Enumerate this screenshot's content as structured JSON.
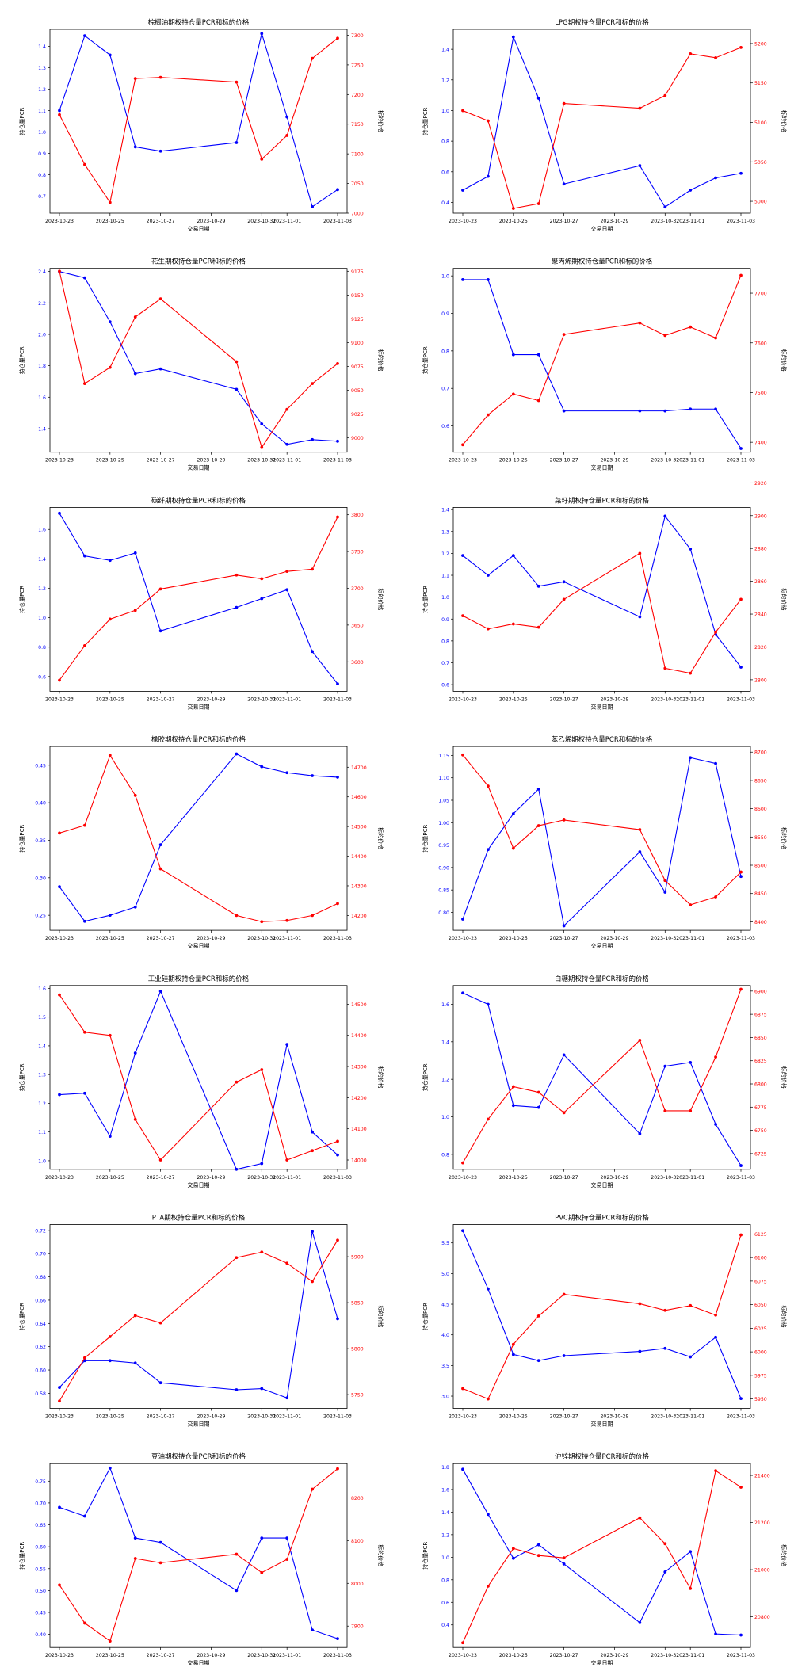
{
  "dates": [
    "2023-10-23",
    "2023-10-24",
    "2023-10-25",
    "2023-10-26",
    "2023-10-27",
    "2023-10-30",
    "2023-10-31",
    "2023-11-01",
    "2023-11-02",
    "2023-11-03"
  ],
  "colors": {
    "pcr": "#0000ff",
    "price": "#ff0000",
    "axis": "#000000"
  },
  "chart_data": [
    {
      "type": "line",
      "title": "棕榈油期权持仓量PCR和标的价格",
      "xlabel": "交易日期",
      "ylabel_left": "持仓量PCR",
      "ylabel_right": "标的价格",
      "x_ticks": [
        "2023-10-23",
        "2023-10-25",
        "2023-10-27",
        "2023-10-29",
        "2023-10-31",
        "2023-11-01",
        "2023-11-03"
      ],
      "left_ticks": [
        "0.7",
        "0.8",
        "0.9",
        "1.0",
        "1.1",
        "1.2",
        "1.3",
        "1.4"
      ],
      "left_ylim": [
        0.62,
        1.48
      ],
      "right_ticks": [
        "7000",
        "7050",
        "7100",
        "7150",
        "7200",
        "7250",
        "7300"
      ],
      "right_ylim": [
        7000,
        7310
      ],
      "series": [
        {
          "name": "持仓量PCR",
          "axis": "left",
          "values": [
            1.1,
            1.45,
            1.36,
            0.93,
            0.91,
            0.95,
            1.46,
            1.07,
            0.65,
            0.73
          ]
        },
        {
          "name": "标的价格",
          "axis": "right",
          "values": [
            7166,
            7082,
            7018,
            7227,
            7229,
            7221,
            7091,
            7131,
            7261,
            7295
          ]
        }
      ]
    },
    {
      "type": "line",
      "title": "LPG期权持仓量PCR和标的价格",
      "xlabel": "交易日期",
      "ylabel_left": "持仓量PCR",
      "ylabel_right": "标的价格",
      "x_ticks": [
        "2023-10-23",
        "2023-10-25",
        "2023-10-27",
        "2023-10-29",
        "2023-10-31",
        "2023-11-01",
        "2023-11-03"
      ],
      "left_ticks": [
        "0.4",
        "0.6",
        "0.8",
        "1.0",
        "1.2",
        "1.4"
      ],
      "left_ylim": [
        0.33,
        1.53
      ],
      "right_ticks": [
        "5000",
        "5050",
        "5100",
        "5150",
        "5200"
      ],
      "right_ylim": [
        4985,
        5218
      ],
      "series": [
        {
          "name": "持仓量PCR",
          "axis": "left",
          "values": [
            0.48,
            0.57,
            1.48,
            1.08,
            0.52,
            0.64,
            0.37,
            0.48,
            0.56,
            0.59
          ]
        },
        {
          "name": "标的价格",
          "axis": "right",
          "values": [
            5115,
            5102,
            4991,
            4997,
            5124,
            5118,
            5134,
            5187,
            5182,
            5195
          ]
        }
      ]
    },
    {
      "type": "line",
      "title": "花生期权持仓量PCR和标的价格",
      "xlabel": "交易日期",
      "ylabel_left": "持仓量PCR",
      "ylabel_right": "标的价格",
      "x_ticks": [
        "2023-10-23",
        "2023-10-25",
        "2023-10-27",
        "2023-10-29",
        "2023-10-31",
        "2023-11-01",
        "2023-11-03"
      ],
      "left_ticks": [
        "1.4",
        "1.6",
        "1.8",
        "2.0",
        "2.2",
        "2.4"
      ],
      "left_ylim": [
        1.25,
        2.42
      ],
      "right_ticks": [
        "9000",
        "9025",
        "9050",
        "9075",
        "9100",
        "9125",
        "9150",
        "9175"
      ],
      "right_ylim": [
        8985,
        9178
      ],
      "series": [
        {
          "name": "持仓量PCR",
          "axis": "left",
          "values": [
            2.4,
            2.36,
            2.08,
            1.75,
            1.78,
            1.65,
            1.43,
            1.3,
            1.33,
            1.32
          ]
        },
        {
          "name": "标的价格",
          "axis": "right",
          "values": [
            9175,
            9057,
            9074,
            9127,
            9146,
            9080,
            8990,
            9030,
            9057,
            9078
          ]
        }
      ]
    },
    {
      "type": "line",
      "title": "聚丙烯期权持仓量PCR和标的价格",
      "xlabel": "交易日期",
      "ylabel_left": "持仓量PCR",
      "ylabel_right": "标的价格",
      "x_ticks": [
        "2023-10-23",
        "2023-10-25",
        "2023-10-27",
        "2023-10-29",
        "2023-10-31",
        "2023-11-01",
        "2023-11-03"
      ],
      "left_ticks": [
        "0.6",
        "0.7",
        "0.8",
        "0.9",
        "1.0"
      ],
      "left_ylim": [
        0.53,
        1.02
      ],
      "right_ticks": [
        "7400",
        "7500",
        "7600",
        "7700"
      ],
      "right_ylim": [
        7380,
        7750
      ],
      "series": [
        {
          "name": "持仓量PCR",
          "axis": "left",
          "values": [
            0.99,
            0.99,
            0.79,
            0.79,
            0.64,
            0.64,
            0.64,
            0.645,
            0.645,
            0.54
          ]
        },
        {
          "name": "标的价格",
          "axis": "right",
          "values": [
            7395,
            7455,
            7497,
            7484,
            7617,
            7640,
            7615,
            7632,
            7610,
            7736
          ]
        }
      ]
    },
    {
      "type": "line",
      "title": "碳纤期权持仓量PCR和标的价格",
      "xlabel": "交易日期",
      "ylabel_left": "持仓量PCR",
      "ylabel_right": "标的价格",
      "x_ticks": [
        "2023-10-23",
        "2023-10-25",
        "2023-10-27",
        "2023-10-29",
        "2023-10-31",
        "2023-11-01",
        "2023-11-03"
      ],
      "left_ticks": [
        "0.6",
        "0.8",
        "1.0",
        "1.2",
        "1.4",
        "1.6"
      ],
      "left_ylim": [
        0.5,
        1.75
      ],
      "right_ticks": [
        "3600",
        "3650",
        "3700",
        "3750",
        "3800"
      ],
      "right_ylim": [
        3560,
        3810
      ],
      "series": [
        {
          "name": "持仓量PCR",
          "axis": "left",
          "values": [
            1.71,
            1.42,
            1.39,
            1.44,
            0.91,
            1.07,
            1.13,
            1.19,
            0.77,
            0.55
          ]
        },
        {
          "name": "标的价格",
          "axis": "right",
          "values": [
            3575,
            3622,
            3658,
            3670,
            3699,
            3718,
            3713,
            3723,
            3726,
            3797
          ]
        }
      ]
    },
    {
      "type": "line",
      "title": "菜籽期权持仓量PCR和标的价格",
      "xlabel": "交易日期",
      "ylabel_left": "持仓量PCR",
      "ylabel_right": "标的价格",
      "x_ticks": [
        "2023-10-23",
        "2023-10-25",
        "2023-10-27",
        "2023-10-29",
        "2023-10-31",
        "2023-11-01",
        "2023-11-03"
      ],
      "left_ticks": [
        "0.6",
        "0.7",
        "0.8",
        "0.9",
        "1.0",
        "1.1",
        "1.2",
        "1.3",
        "1.4"
      ],
      "left_ylim": [
        0.57,
        1.41
      ],
      "right_ticks": [
        "2800",
        "2820",
        "2840",
        "2860",
        "2880",
        "2900",
        "2920"
      ],
      "right_ylim": [
        2793,
        2905
      ],
      "series": [
        {
          "name": "持仓量PCR",
          "axis": "left",
          "values": [
            1.19,
            1.1,
            1.19,
            1.05,
            1.07,
            0.91,
            1.37,
            1.22,
            0.83,
            0.68
          ]
        },
        {
          "name": "标的价格",
          "axis": "right",
          "values": [
            2839,
            2831,
            2834,
            2832,
            2849,
            2877,
            2807,
            2804,
            2829,
            2849
          ]
        }
      ]
    },
    {
      "type": "line",
      "title": "橡胶期权持仓量PCR和标的价格",
      "xlabel": "交易日期",
      "ylabel_left": "持仓量PCR",
      "ylabel_right": "标的价格",
      "x_ticks": [
        "2023-10-23",
        "2023-10-25",
        "2023-10-27",
        "2023-10-29",
        "2023-10-31",
        "2023-11-01",
        "2023-11-03"
      ],
      "left_ticks": [
        "0.25",
        "0.30",
        "0.35",
        "0.40",
        "0.45"
      ],
      "left_ylim": [
        0.23,
        0.475
      ],
      "right_ticks": [
        "14200",
        "14300",
        "14400",
        "14500",
        "14600",
        "14700"
      ],
      "right_ylim": [
        14150,
        14770
      ],
      "series": [
        {
          "name": "持仓量PCR",
          "axis": "left",
          "values": [
            0.288,
            0.242,
            0.25,
            0.261,
            0.344,
            0.465,
            0.448,
            0.44,
            0.436,
            0.434
          ]
        },
        {
          "name": "标的价格",
          "axis": "right",
          "values": [
            14478,
            14504,
            14740,
            14605,
            14357,
            14200,
            14179,
            14183,
            14200,
            14240
          ]
        }
      ]
    },
    {
      "type": "line",
      "title": "苯乙烯期权持仓量PCR和标的价格",
      "xlabel": "交易日期",
      "ylabel_left": "持仓量PCR",
      "ylabel_right": "标的价格",
      "x_ticks": [
        "2023-10-23",
        "2023-10-25",
        "2023-10-27",
        "2023-10-29",
        "2023-10-31",
        "2023-11-01",
        "2023-11-03"
      ],
      "left_ticks": [
        "0.80",
        "0.85",
        "0.90",
        "0.95",
        "1.00",
        "1.05",
        "1.10",
        "1.15"
      ],
      "left_ylim": [
        0.76,
        1.17
      ],
      "right_ticks": [
        "8400",
        "8450",
        "8500",
        "8550",
        "8600",
        "8650",
        "8700"
      ],
      "right_ylim": [
        8385,
        8710
      ],
      "series": [
        {
          "name": "持仓量PCR",
          "axis": "left",
          "values": [
            0.785,
            0.94,
            1.02,
            1.075,
            0.77,
            0.935,
            0.845,
            1.145,
            1.132,
            0.88
          ]
        },
        {
          "name": "标的价格",
          "axis": "right",
          "values": [
            8695,
            8640,
            8530,
            8570,
            8580,
            8563,
            8473,
            8430,
            8444,
            8488
          ]
        }
      ]
    },
    {
      "type": "line",
      "title": "工业硅期权持仓量PCR和标的价格",
      "xlabel": "交易日期",
      "ylabel_left": "持仓量PCR",
      "ylabel_right": "标的价格",
      "x_ticks": [
        "2023-10-23",
        "2023-10-25",
        "2023-10-27",
        "2023-10-29",
        "2023-10-31",
        "2023-11-01",
        "2023-11-03"
      ],
      "left_ticks": [
        "1.0",
        "1.1",
        "1.2",
        "1.3",
        "1.4",
        "1.5",
        "1.6"
      ],
      "left_ylim": [
        0.97,
        1.61
      ],
      "right_ticks": [
        "14000",
        "14100",
        "14200",
        "14300",
        "14400",
        "14500"
      ],
      "right_ylim": [
        13970,
        14560
      ],
      "series": [
        {
          "name": "持仓量PCR",
          "axis": "left",
          "values": [
            1.23,
            1.235,
            1.085,
            1.375,
            1.59,
            0.97,
            0.99,
            1.405,
            1.1,
            1.02
          ]
        },
        {
          "name": "标的价格",
          "axis": "right",
          "values": [
            14530,
            14410,
            14400,
            14130,
            14000,
            14250,
            14290,
            14000,
            14030,
            14060
          ]
        }
      ]
    },
    {
      "type": "line",
      "title": "白糖期权持仓量PCR和标的价格",
      "xlabel": "交易日期",
      "ylabel_left": "持仓量PCR",
      "ylabel_right": "标的价格",
      "x_ticks": [
        "2023-10-23",
        "2023-10-25",
        "2023-10-27",
        "2023-10-29",
        "2023-10-31",
        "2023-11-01",
        "2023-11-03"
      ],
      "left_ticks": [
        "0.8",
        "1.0",
        "1.2",
        "1.4",
        "1.6"
      ],
      "left_ylim": [
        0.72,
        1.7
      ],
      "right_ticks": [
        "6725",
        "6750",
        "6775",
        "6800",
        "6825",
        "6850",
        "6875",
        "6900"
      ],
      "right_ylim": [
        6708,
        6906
      ],
      "series": [
        {
          "name": "持仓量PCR",
          "axis": "left",
          "values": [
            1.66,
            1.6,
            1.06,
            1.05,
            1.33,
            0.91,
            1.27,
            1.29,
            0.96,
            0.74
          ]
        },
        {
          "name": "标的价格",
          "axis": "right",
          "values": [
            6715,
            6762,
            6797,
            6791,
            6769,
            6847,
            6771,
            6771,
            6829,
            6902
          ]
        }
      ]
    },
    {
      "type": "line",
      "title": "PTA期权持仓量PCR和标的价格",
      "xlabel": "交易日期",
      "ylabel_left": "持仓量PCR",
      "ylabel_right": "标的价格",
      "x_ticks": [
        "2023-10-23",
        "2023-10-25",
        "2023-10-27",
        "2023-10-29",
        "2023-10-31",
        "2023-11-01",
        "2023-11-03"
      ],
      "left_ticks": [
        "0.58",
        "0.60",
        "0.62",
        "0.64",
        "0.66",
        "0.68",
        "0.70",
        "0.72"
      ],
      "left_ylim": [
        0.567,
        0.725
      ],
      "right_ticks": [
        "5750",
        "5800",
        "5850",
        "5900"
      ],
      "right_ylim": [
        5735,
        5935
      ],
      "series": [
        {
          "name": "持仓量PCR",
          "axis": "left",
          "values": [
            0.585,
            0.608,
            0.608,
            0.606,
            0.589,
            0.583,
            0.584,
            0.576,
            0.719,
            0.644
          ]
        },
        {
          "name": "标的价格",
          "axis": "right",
          "values": [
            5743,
            5790,
            5813,
            5836,
            5828,
            5899,
            5905,
            5893,
            5873,
            5918
          ]
        }
      ]
    },
    {
      "type": "line",
      "title": "PVC期权持仓量PCR和标的价格",
      "xlabel": "交易日期",
      "ylabel_left": "持仓量PCR",
      "ylabel_right": "标的价格",
      "x_ticks": [
        "2023-10-23",
        "2023-10-25",
        "2023-10-27",
        "2023-10-29",
        "2023-10-31",
        "2023-11-01",
        "2023-11-03"
      ],
      "left_ticks": [
        "3.0",
        "3.5",
        "4.0",
        "4.5",
        "5.0",
        "5.5"
      ],
      "left_ylim": [
        2.8,
        5.8
      ],
      "right_ticks": [
        "5950",
        "5975",
        "6000",
        "6025",
        "6050",
        "6075",
        "6100",
        "6125"
      ],
      "right_ylim": [
        5940,
        6135
      ],
      "series": [
        {
          "name": "持仓量PCR",
          "axis": "left",
          "values": [
            5.7,
            4.75,
            3.68,
            3.58,
            3.66,
            3.73,
            3.78,
            3.64,
            3.96,
            2.96
          ]
        },
        {
          "name": "标的价格",
          "axis": "right",
          "values": [
            5961,
            5950,
            6008,
            6038,
            6061,
            6051,
            6044,
            6049,
            6039,
            6124
          ]
        }
      ]
    },
    {
      "type": "line",
      "title": "豆油期权持仓量PCR和标的价格",
      "xlabel": "交易日期",
      "ylabel_left": "持仓量PCR",
      "ylabel_right": "标的价格",
      "x_ticks": [
        "2023-10-23",
        "2023-10-25",
        "2023-10-27",
        "2023-10-29",
        "2023-10-31",
        "2023-11-01",
        "2023-11-03"
      ],
      "left_ticks": [
        "0.40",
        "0.45",
        "0.50",
        "0.55",
        "0.60",
        "0.65",
        "0.70",
        "0.75"
      ],
      "left_ylim": [
        0.37,
        0.79
      ],
      "right_ticks": [
        "7900",
        "8000",
        "8100",
        "8200"
      ],
      "right_ylim": [
        7850,
        8280
      ],
      "series": [
        {
          "name": "持仓量PCR",
          "axis": "left",
          "values": [
            0.69,
            0.67,
            0.78,
            0.62,
            0.61,
            0.5,
            0.62,
            0.62,
            0.41,
            0.39
          ]
        },
        {
          "name": "标的价格",
          "axis": "right",
          "values": [
            7996,
            7907,
            7865,
            8058,
            8048,
            8068,
            8025,
            8056,
            8220,
            8268
          ]
        }
      ]
    },
    {
      "type": "line",
      "title": "沪锌期权持仓量PCR和标的价格",
      "xlabel": "交易日期",
      "ylabel_left": "持仓量PCR",
      "ylabel_right": "标的价格",
      "x_ticks": [
        "2023-10-23",
        "2023-10-25",
        "2023-10-27",
        "2023-10-29",
        "2023-10-31",
        "2023-11-01",
        "2023-11-03"
      ],
      "left_ticks": [
        "0.4",
        "0.6",
        "0.8",
        "1.0",
        "1.2",
        "1.4",
        "1.6",
        "1.8"
      ],
      "left_ylim": [
        0.2,
        1.83
      ],
      "right_ticks": [
        "20800",
        "21000",
        "21200",
        "21400"
      ],
      "right_ylim": [
        20670,
        21450
      ],
      "series": [
        {
          "name": "持仓量PCR",
          "axis": "left",
          "values": [
            1.78,
            1.38,
            0.99,
            1.11,
            0.94,
            0.42,
            0.87,
            1.05,
            0.32,
            0.31
          ]
        },
        {
          "name": "标的价格",
          "axis": "right",
          "values": [
            20690,
            20930,
            21090,
            21060,
            21050,
            21220,
            21110,
            20920,
            21420,
            21350
          ]
        }
      ]
    }
  ]
}
